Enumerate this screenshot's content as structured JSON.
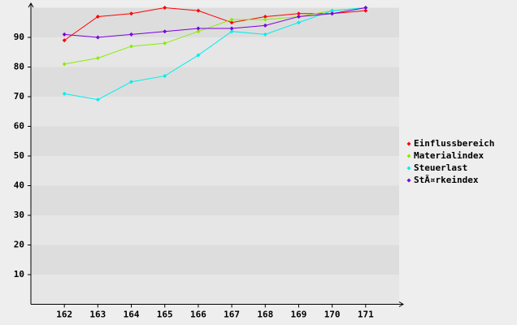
{
  "chart_data": {
    "type": "line",
    "categories": [
      162,
      163,
      164,
      165,
      166,
      167,
      168,
      169,
      170,
      171
    ],
    "series": [
      {
        "name": "Einflussbereich",
        "color": "#ff0000",
        "values": [
          89,
          97,
          98,
          100,
          99,
          95,
          97,
          98,
          98,
          99
        ]
      },
      {
        "name": "Materialindex",
        "color": "#88ee00",
        "values": [
          81,
          83,
          87,
          88,
          92,
          96,
          96,
          97,
          99,
          100
        ]
      },
      {
        "name": "Steuerlast",
        "color": "#00eeee",
        "values": [
          71,
          69,
          75,
          77,
          84,
          92,
          91,
          95,
          99,
          100
        ]
      },
      {
        "name": "StÃ¤rkeindex",
        "color": "#7a00e0",
        "values": [
          91,
          90,
          91,
          92,
          93,
          93,
          94,
          97,
          98,
          100
        ]
      }
    ],
    "ylim": [
      0,
      100
    ],
    "yticks": [
      10,
      20,
      30,
      40,
      50,
      60,
      70,
      80,
      90
    ],
    "grid": true,
    "legend": "right"
  }
}
